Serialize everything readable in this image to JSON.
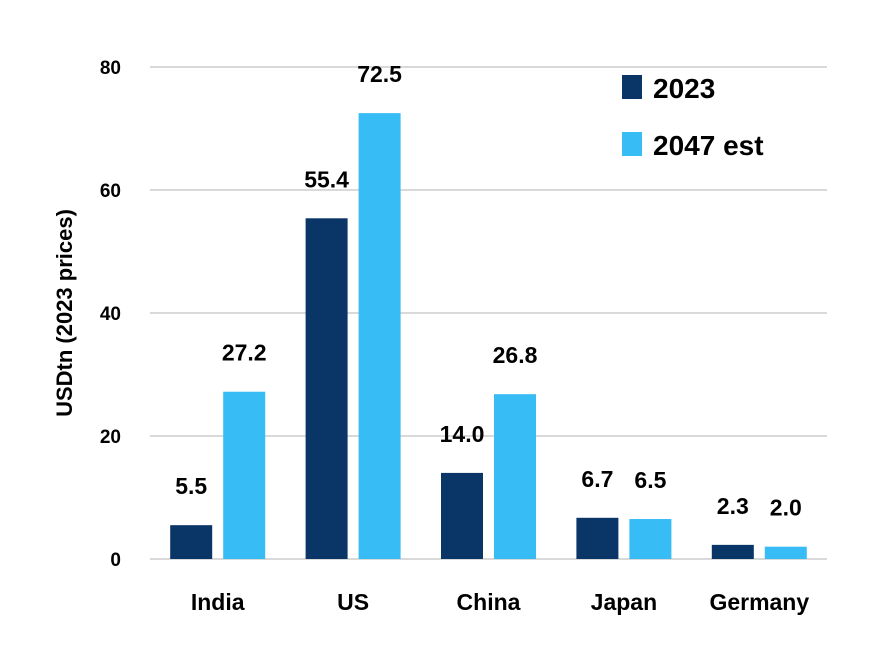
{
  "chart_data": {
    "type": "bar",
    "title": "",
    "xlabel": "",
    "ylabel": "USDtn (2023 prices)",
    "ylim": [
      0,
      80
    ],
    "yticks": [
      0,
      20,
      40,
      60,
      80
    ],
    "ytick_labels": [
      "0",
      "20",
      "40",
      "60",
      "80"
    ],
    "grid": true,
    "legend_position": "top-right",
    "categories": [
      "India",
      "US",
      "China",
      "Japan",
      "Germany"
    ],
    "series": [
      {
        "name": "2023",
        "color": "#0a3567",
        "values": [
          5.5,
          55.4,
          14.0,
          6.7,
          2.3
        ],
        "labels": [
          "5.5",
          "55.4",
          "14.0",
          "6.7",
          "2.3"
        ]
      },
      {
        "name": "2047 est",
        "color": "#38bcf6",
        "values": [
          27.2,
          72.5,
          26.8,
          6.5,
          2.0
        ],
        "labels": [
          "27.2",
          "72.5",
          "26.8",
          "6.5",
          "2.0"
        ]
      }
    ]
  }
}
